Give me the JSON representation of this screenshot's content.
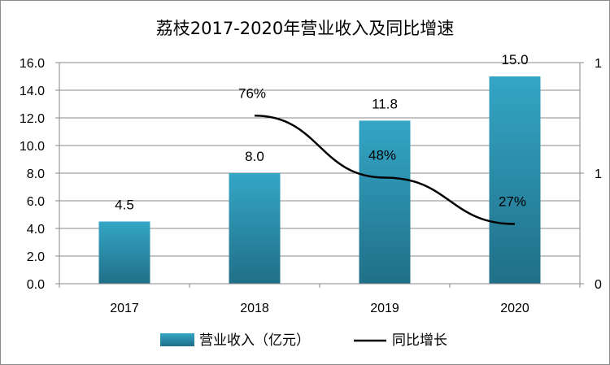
{
  "chart_data": {
    "type": "bar",
    "title": "荔枝2017-2020年营业收入及同比增速",
    "categories": [
      "2017",
      "2018",
      "2019",
      "2020"
    ],
    "series": [
      {
        "name": "营业收入（亿元）",
        "type": "bar",
        "axis": "left",
        "values": [
          4.5,
          8.0,
          11.8,
          15.0
        ],
        "data_labels": [
          "4.5",
          "8.0",
          "11.8",
          "15.0"
        ],
        "color": "#2f9ab8"
      },
      {
        "name": "同比增长",
        "type": "line",
        "axis": "right",
        "values": [
          null,
          0.76,
          0.48,
          0.27
        ],
        "data_labels": [
          "",
          "76%",
          "48%",
          "27%"
        ],
        "color": "#000000"
      }
    ],
    "y_left": {
      "ylim": [
        0,
        16
      ],
      "ticks": [
        "0.0",
        "2.0",
        "4.0",
        "6.0",
        "8.0",
        "10.0",
        "12.0",
        "14.0",
        "16.0"
      ]
    },
    "y_right": {
      "ylim": [
        0,
        1
      ],
      "ticks": [
        "0",
        "1",
        "1"
      ]
    },
    "grid": true,
    "legend_position": "bottom"
  }
}
